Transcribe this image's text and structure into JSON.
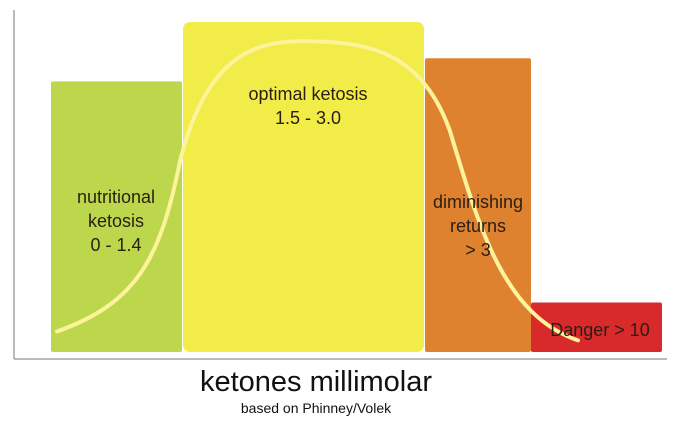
{
  "chart_data": {
    "type": "bar",
    "xlabel": "ketones millimolar",
    "subtitle": "based on Phinney/Volek",
    "zones": [
      {
        "lines": [
          "nutritional",
          "ketosis",
          "0 - 1.4"
        ],
        "range": [
          0,
          1.4
        ],
        "height": 0.82,
        "color": "#bcd74b"
      },
      {
        "lines": [
          "optimal ketosis",
          "1.5 - 3.0"
        ],
        "range": [
          1.5,
          3.0
        ],
        "height": 1.0,
        "color": "#f1ec47"
      },
      {
        "lines": [
          "diminishing",
          "returns",
          "> 3"
        ],
        "range": [
          3,
          10
        ],
        "height": 0.89,
        "color": "#de8230"
      },
      {
        "lines": [
          "Danger > 10"
        ],
        "range": [
          10,
          null
        ],
        "height": 0.15,
        "color": "#d92a2b"
      }
    ],
    "curve": {
      "shape": "bell",
      "color": "#fdf39a",
      "start_level": 0.05,
      "peak_level": 0.96,
      "end_level": 0.02
    },
    "axes": {
      "x_axis": true,
      "y_axis": true,
      "ticks": false
    }
  }
}
